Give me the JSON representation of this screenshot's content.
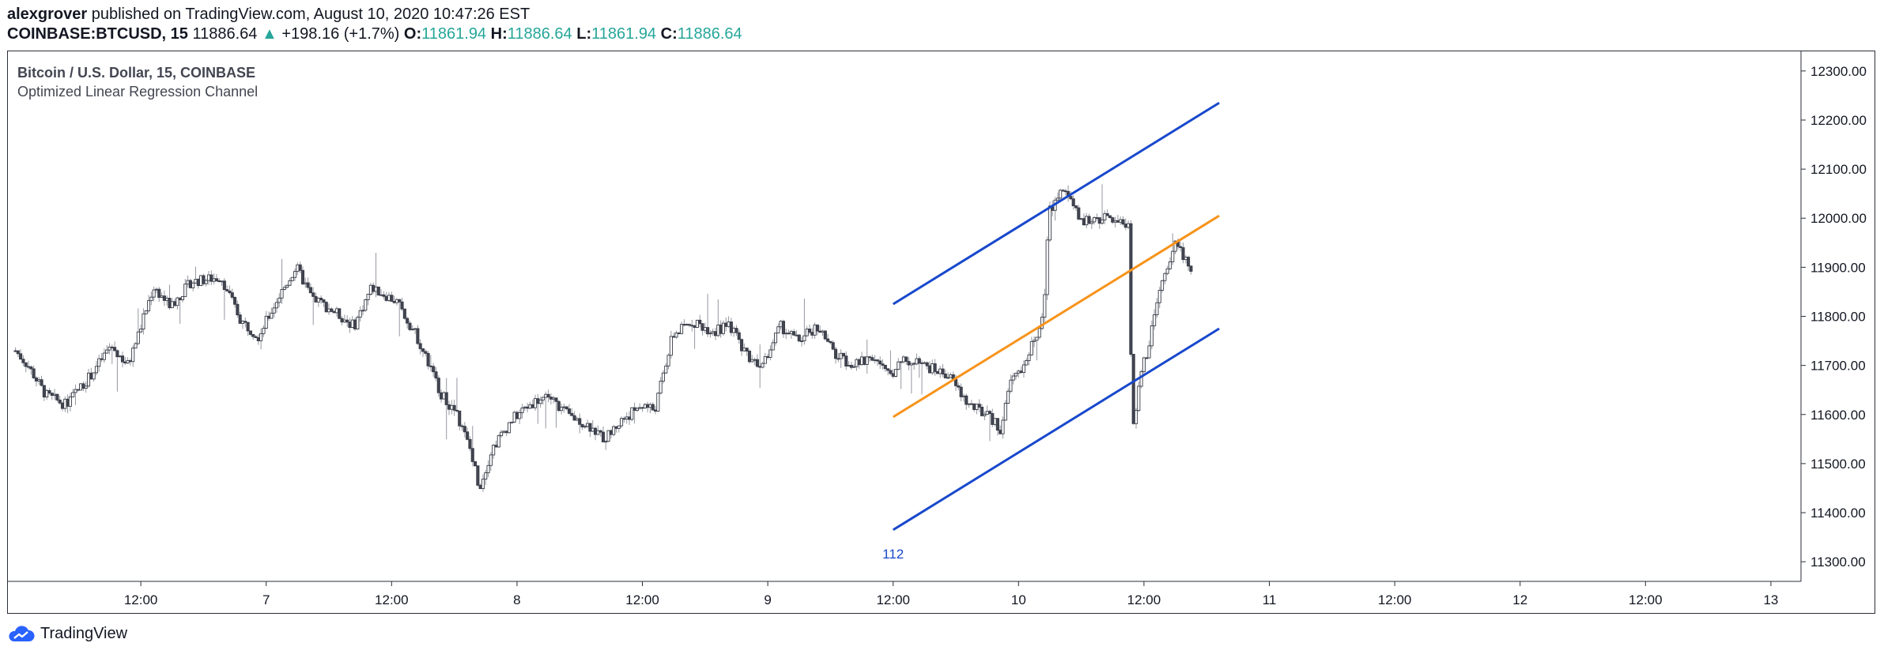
{
  "header": {
    "author": "alexgrover",
    "published_text": "published on TradingView.com, August 10, 2020 10:47:26 EST"
  },
  "ticker": {
    "symbol": "COINBASE:BTCUSD, 15",
    "last": "11886.64",
    "change": "+198.16 (+1.7%)",
    "o_label": "O:",
    "o": "11861.94",
    "h_label": "H:",
    "h": "11886.64",
    "l_label": "L:",
    "l": "11861.94",
    "c_label": "C:",
    "c": "11886.64",
    "up_color": "#26a69a"
  },
  "chart_title": "Bitcoin / U.S. Dollar, 15, COINBASE",
  "indicator_name": "Optimized Linear Regression Channel",
  "footer": {
    "brand": "TradingView"
  },
  "chart_data": {
    "type": "candlestick",
    "interval": "15m",
    "y_axis": {
      "ticks": [
        "11300.00",
        "11400.00",
        "11500.00",
        "11600.00",
        "11700.00",
        "11800.00",
        "11900.00",
        "12000.00",
        "12100.00",
        "12200.00",
        "12300.00"
      ],
      "range": [
        11260,
        12340
      ]
    },
    "x_axis": {
      "ticks": [
        "12:00",
        "7",
        "12:00",
        "8",
        "12:00",
        "9",
        "12:00",
        "10",
        "12:00",
        "11",
        "12:00",
        "12",
        "12:00",
        "13"
      ],
      "bold_ticks": [
        "10"
      ],
      "range_days": [
        5.97,
        13.12
      ]
    },
    "price_keypoints": [
      [
        6.0,
        11730
      ],
      [
        6.05,
        11700
      ],
      [
        6.12,
        11640
      ],
      [
        6.2,
        11620
      ],
      [
        6.3,
        11680
      ],
      [
        6.38,
        11740
      ],
      [
        6.45,
        11700
      ],
      [
        6.55,
        11860
      ],
      [
        6.62,
        11820
      ],
      [
        6.7,
        11870
      ],
      [
        6.82,
        11880
      ],
      [
        6.9,
        11790
      ],
      [
        6.97,
        11760
      ],
      [
        7.05,
        11840
      ],
      [
        7.12,
        11900
      ],
      [
        7.18,
        11840
      ],
      [
        7.27,
        11810
      ],
      [
        7.35,
        11780
      ],
      [
        7.42,
        11860
      ],
      [
        7.52,
        11830
      ],
      [
        7.6,
        11760
      ],
      [
        7.7,
        11640
      ],
      [
        7.76,
        11600
      ],
      [
        7.82,
        11520
      ],
      [
        7.85,
        11450
      ],
      [
        7.9,
        11530
      ],
      [
        7.98,
        11590
      ],
      [
        8.05,
        11620
      ],
      [
        8.12,
        11640
      ],
      [
        8.2,
        11600
      ],
      [
        8.28,
        11580
      ],
      [
        8.35,
        11550
      ],
      [
        8.42,
        11590
      ],
      [
        8.5,
        11620
      ],
      [
        8.55,
        11610
      ],
      [
        8.62,
        11760
      ],
      [
        8.7,
        11790
      ],
      [
        8.78,
        11770
      ],
      [
        8.85,
        11780
      ],
      [
        8.92,
        11720
      ],
      [
        8.98,
        11700
      ],
      [
        9.05,
        11780
      ],
      [
        9.12,
        11750
      ],
      [
        9.2,
        11780
      ],
      [
        9.27,
        11720
      ],
      [
        9.35,
        11700
      ],
      [
        9.42,
        11720
      ],
      [
        9.48,
        11680
      ],
      [
        9.55,
        11710
      ],
      [
        9.62,
        11700
      ],
      [
        9.72,
        11680
      ],
      [
        9.8,
        11620
      ],
      [
        9.87,
        11600
      ],
      [
        9.93,
        11570
      ],
      [
        9.97,
        11670
      ],
      [
        10.02,
        11700
      ],
      [
        10.07,
        11760
      ],
      [
        10.1,
        11800
      ],
      [
        10.12,
        12010
      ],
      [
        10.15,
        12040
      ],
      [
        10.18,
        12060
      ],
      [
        10.21,
        12030
      ],
      [
        10.25,
        11990
      ],
      [
        10.3,
        12000
      ],
      [
        10.36,
        12000
      ],
      [
        10.42,
        11990
      ],
      [
        10.44,
        11990
      ],
      [
        10.45,
        11650
      ],
      [
        10.46,
        11560
      ],
      [
        10.48,
        11670
      ],
      [
        10.52,
        11740
      ],
      [
        10.56,
        11850
      ],
      [
        10.6,
        11900
      ],
      [
        10.63,
        11960
      ],
      [
        10.66,
        11920
      ],
      [
        10.69,
        11880
      ]
    ],
    "regression_channel": {
      "length": 112,
      "length_label": "112",
      "start_day": 9.5,
      "end_day": 10.8,
      "mid_start": 11595,
      "mid_end": 12005,
      "upper_start": 11825,
      "upper_end": 12235,
      "lower_start": 11365,
      "lower_end": 11775,
      "band_color": "#1848cc",
      "mid_color": "#f7931a"
    },
    "colors": {
      "up": "#ffffff",
      "down": "#434651",
      "wick": "#9598a1",
      "border": "#363a45"
    }
  }
}
